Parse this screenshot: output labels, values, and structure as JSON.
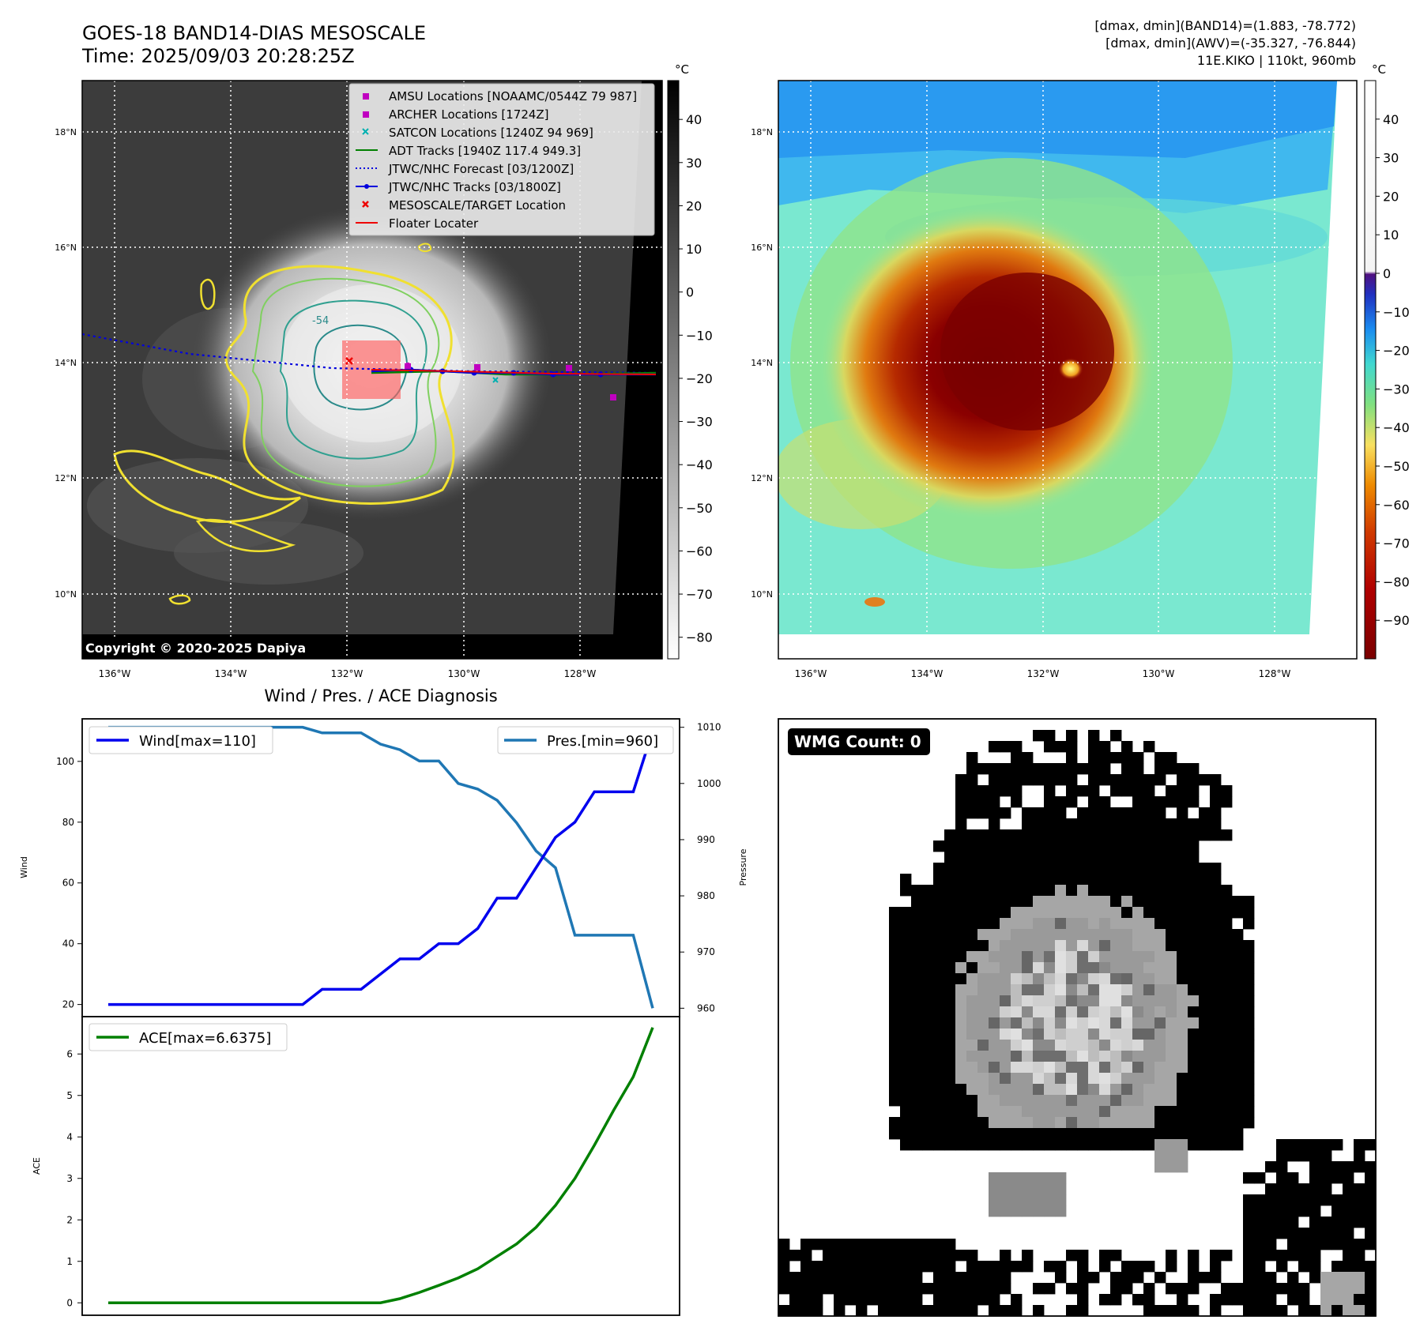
{
  "header": {
    "title_line1": "GOES-18 BAND14-DIAS MESOSCALE",
    "title_line2": "Time: 2025/09/03 20:28:25Z",
    "stats_line1": "[dmax, dmin](BAND14)=(1.883, -78.772)",
    "stats_line2": "[dmax, dmin](AWV)=(-35.327, -76.844)",
    "stats_line3": "11E.KIKO | 110kt, 960mb"
  },
  "ir_panel": {
    "copyright": "Copyright © 2020-2025 Dapiya",
    "lat_ticks": [
      "18°N",
      "16°N",
      "14°N",
      "12°N",
      "10°N"
    ],
    "lon_ticks": [
      "136°W",
      "134°W",
      "132°W",
      "130°W",
      "128°W"
    ],
    "contour_label": "-54",
    "colorbar_unit": "°C",
    "colorbar_ticks": [
      "40",
      "30",
      "20",
      "10",
      "0",
      "−10",
      "−20",
      "−30",
      "−40",
      "−50",
      "−60",
      "−70",
      "−80"
    ],
    "legend": [
      {
        "label": "AMSU Locations [NOAAMC/0544Z 79 987]",
        "marker": "square",
        "color": "#c000c0"
      },
      {
        "label": "ARCHER Locations [1724Z]",
        "marker": "square",
        "color": "#c000c0"
      },
      {
        "label": "SATCON Locations [1240Z 94 969]",
        "marker": "x",
        "color": "#00b0b0"
      },
      {
        "label": "ADT Tracks [1940Z 117.4 949.3]",
        "marker": "line",
        "color": "#008000"
      },
      {
        "label": "JTWC/NHC Forecast [03/1200Z]",
        "marker": "dotted",
        "color": "#0000dd"
      },
      {
        "label": "JTWC/NHC Tracks [03/1800Z]",
        "marker": "linedot",
        "color": "#0000dd"
      },
      {
        "label": "MESOSCALE/TARGET Location",
        "marker": "x",
        "color": "#ee0000"
      },
      {
        "label": "Floater Locater",
        "marker": "line",
        "color": "#ee0000"
      }
    ]
  },
  "awv_panel": {
    "lat_ticks": [
      "18°N",
      "16°N",
      "14°N",
      "12°N",
      "10°N"
    ],
    "lon_ticks": [
      "136°W",
      "134°W",
      "132°W",
      "130°W",
      "128°W"
    ],
    "colorbar_unit": "°C",
    "colorbar_ticks": [
      "40",
      "30",
      "20",
      "10",
      "0",
      "−10",
      "−20",
      "−30",
      "−40",
      "−50",
      "−60",
      "−70",
      "−80",
      "−90"
    ]
  },
  "diagnosis_title": "Wind / Pres. / ACE Diagnosis",
  "wmg_label": "WMG Count: 0",
  "colors": {
    "wind": "#0000ee",
    "pressure": "#1f77b4",
    "ace": "#008000"
  },
  "chart_data": [
    {
      "type": "line",
      "title": "Wind / Pres. / ACE Diagnosis",
      "ylabel": "Wind",
      "y2label": "Pressure",
      "ylim": [
        16,
        114
      ],
      "y2lim": [
        958.5,
        1011.5
      ],
      "yticks": [
        20,
        40,
        60,
        80,
        100
      ],
      "y2ticks": [
        960,
        970,
        980,
        990,
        1000,
        1010
      ],
      "legend_wind": "Wind[max=110]",
      "legend_pressure": "Pres.[min=960]",
      "x": [
        0,
        1,
        2,
        3,
        4,
        5,
        6,
        7,
        8,
        9,
        10,
        11,
        12,
        13,
        14,
        15,
        16,
        17,
        18,
        19,
        20,
        21,
        22,
        23,
        24,
        25,
        26,
        27,
        28
      ],
      "series": [
        {
          "name": "Wind",
          "axis": "left",
          "values": [
            20,
            20,
            20,
            20,
            20,
            20,
            20,
            20,
            20,
            20,
            20,
            25,
            25,
            25,
            30,
            35,
            35,
            40,
            40,
            45,
            55,
            55,
            65,
            75,
            80,
            90,
            90,
            90,
            110
          ]
        },
        {
          "name": "Pressure",
          "axis": "right",
          "values": [
            1010,
            1010,
            1010,
            1010,
            1010,
            1010,
            1010,
            1010,
            1010,
            1010,
            1010,
            1009,
            1009,
            1009,
            1007,
            1006,
            1004,
            1004,
            1000,
            999,
            997,
            993,
            988,
            985,
            973,
            973,
            973,
            973,
            960
          ]
        }
      ]
    },
    {
      "type": "line",
      "ylabel": "ACE",
      "ylim": [
        -0.3,
        6.9
      ],
      "yticks": [
        0,
        1,
        2,
        3,
        4,
        5,
        6
      ],
      "legend_ace": "ACE[max=6.6375]",
      "x": [
        0,
        1,
        2,
        3,
        4,
        5,
        6,
        7,
        8,
        9,
        10,
        11,
        12,
        13,
        14,
        15,
        16,
        17,
        18,
        19,
        20,
        21,
        22,
        23,
        24,
        25,
        26,
        27,
        28
      ],
      "series": [
        {
          "name": "ACE",
          "values": [
            0,
            0,
            0,
            0,
            0,
            0,
            0,
            0,
            0,
            0,
            0,
            0,
            0,
            0,
            0,
            0.1,
            0.25,
            0.42,
            0.6,
            0.82,
            1.12,
            1.42,
            1.82,
            2.35,
            3.0,
            3.8,
            4.65,
            5.45,
            6.6375
          ]
        }
      ]
    }
  ]
}
